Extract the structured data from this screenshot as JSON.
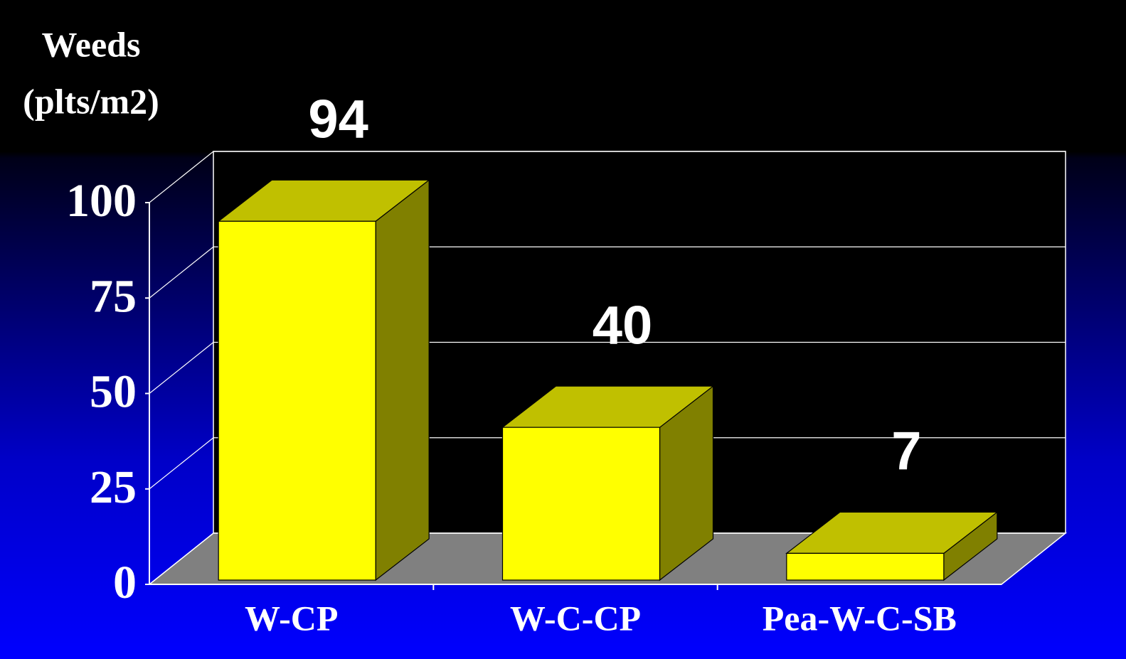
{
  "chart_data": {
    "type": "bar3d",
    "y_label_lines": [
      "Weeds",
      "(plts/m2)"
    ],
    "categories": [
      "W-CP",
      "W-C-CP",
      "Pea-W-C-SB"
    ],
    "values": [
      94,
      40,
      7
    ],
    "color": "#ffff00",
    "ylim": [
      0,
      100
    ],
    "yticks": [
      0,
      25,
      50,
      75,
      100
    ],
    "grid": true
  }
}
